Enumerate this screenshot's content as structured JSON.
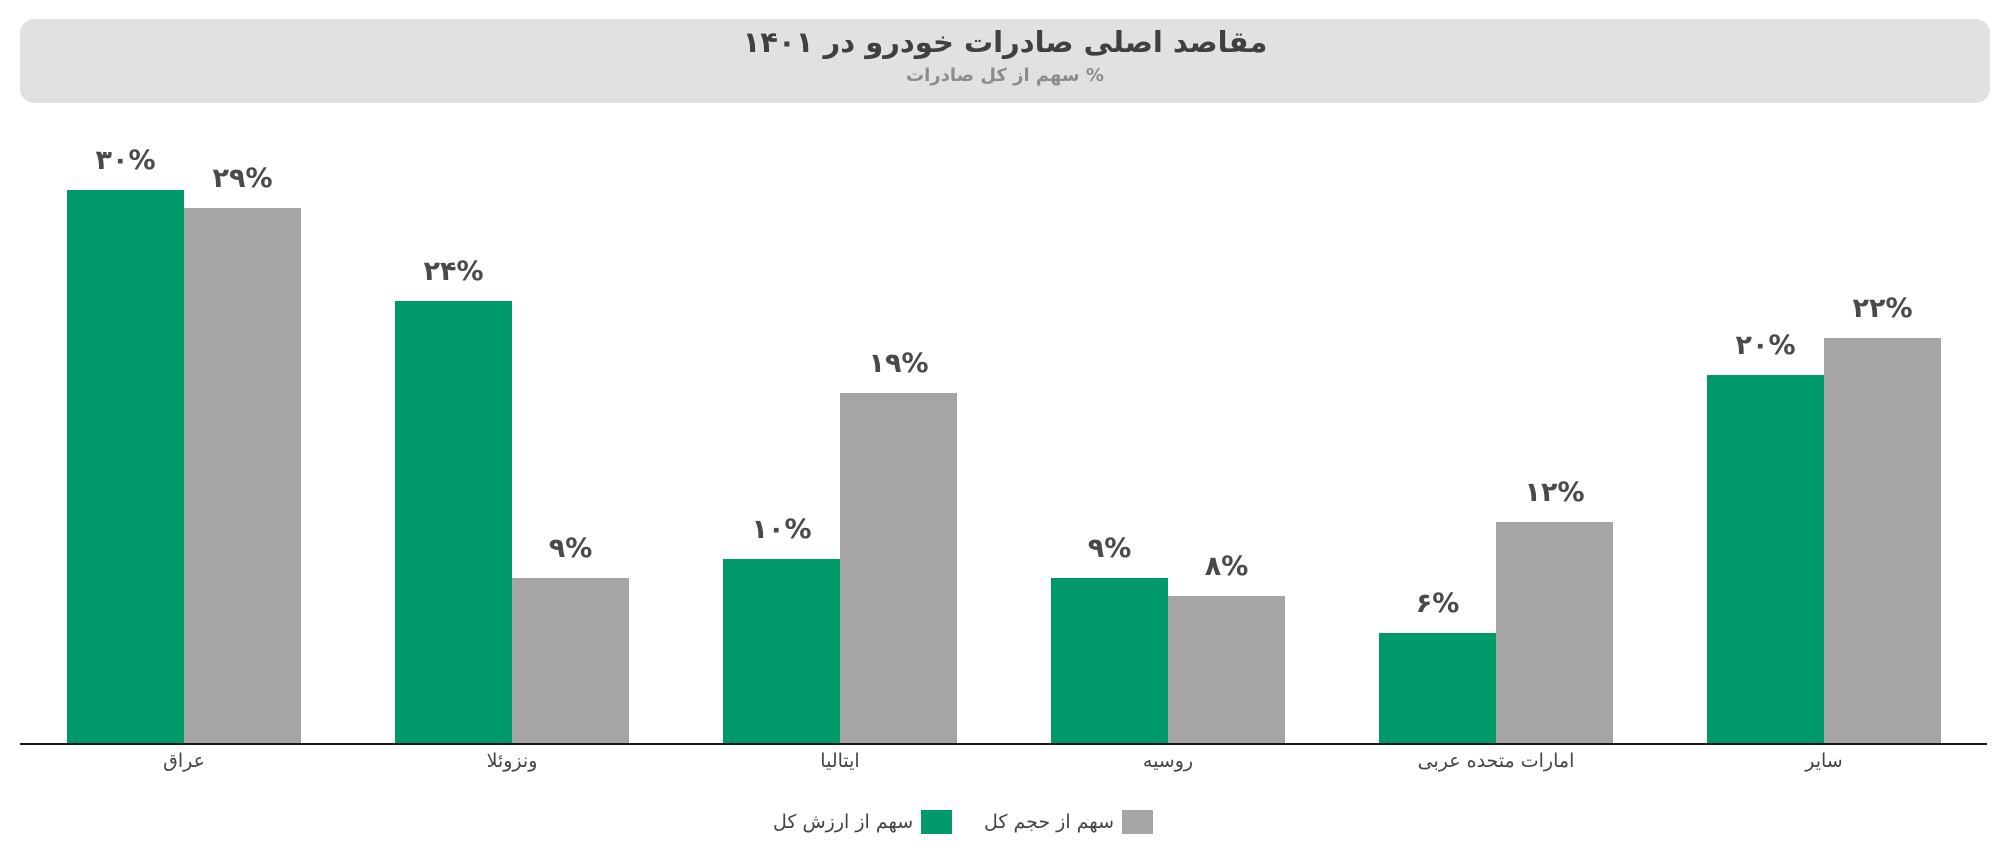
{
  "header": {
    "title": "مقاصد اصلی صادرات خودرو در ۱۴۰۱",
    "subtitle": "% سهم از کل صادرات"
  },
  "legend": [
    {
      "label": "سهم از ارزش کل",
      "color": "#00996a"
    },
    {
      "label": "سهم از حجم کل",
      "color": "#a5a5a5"
    }
  ],
  "colors": {
    "value_share": "#00996a",
    "volume_share": "#a5a5a5",
    "header_bg": "#e1e1e1"
  },
  "chart_data": {
    "type": "bar",
    "title": "مقاصد اصلی صادرات خودرو در ۱۴۰۱",
    "subtitle": "% سهم از کل صادرات",
    "xlabel": "",
    "ylabel": "",
    "categories": [
      "عراق",
      "ونزوئلا",
      "ایتالیا",
      "روسیه",
      "امارات متحده عربی",
      "سایر"
    ],
    "series": [
      {
        "name": "سهم از ارزش کل",
        "values": [
          30,
          24,
          10,
          9,
          6,
          20
        ],
        "labels": [
          "۳۰%",
          "۲۴%",
          "۱۰%",
          "۹%",
          "۶%",
          "۲۰%"
        ],
        "color": "#00996a"
      },
      {
        "name": "سهم از حجم کل",
        "values": [
          29,
          9,
          19,
          8,
          12,
          22
        ],
        "labels": [
          "۲۹%",
          "۹%",
          "۱۹%",
          "۸%",
          "۱۲%",
          "۲۲%"
        ],
        "color": "#a5a5a5"
      }
    ],
    "ylim": [
      0,
      30
    ],
    "grid": false,
    "legend_position": "bottom"
  }
}
